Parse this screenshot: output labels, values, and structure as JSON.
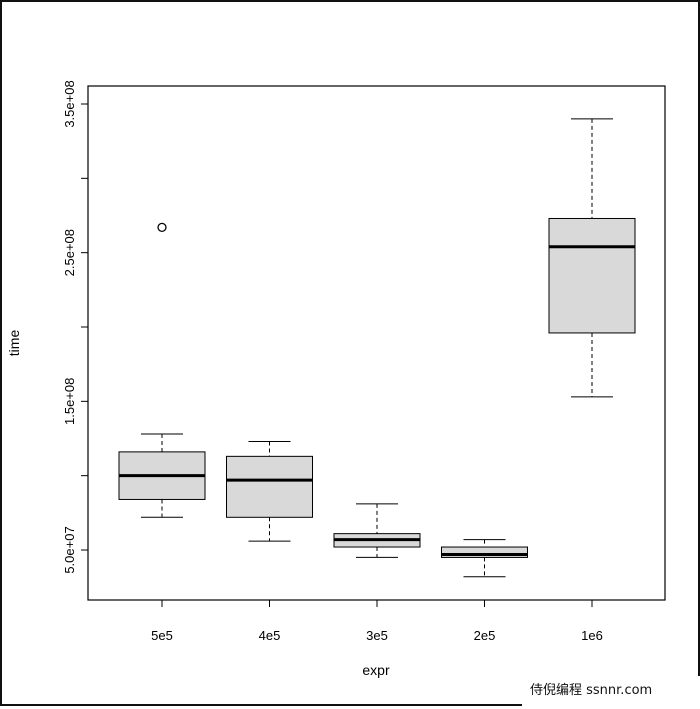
{
  "chart_data": {
    "type": "boxplot",
    "xlabel": "expr",
    "ylabel": "time",
    "ylim": [
      20000000,
      370000000
    ],
    "yticks": [
      50000000,
      100000000,
      150000000,
      200000000,
      250000000,
      300000000,
      350000000
    ],
    "ytick_labels": [
      "5.0e+07",
      "",
      "1.5e+08",
      "",
      "2.5e+08",
      "",
      "3.5e+08"
    ],
    "categories": [
      "5e5",
      "4e5",
      "3e5",
      "2e5",
      "1e6"
    ],
    "boxes": [
      {
        "whisker_low": 72000000,
        "q1": 84000000,
        "median": 100000000,
        "q3": 116000000,
        "whisker_high": 128000000,
        "outliers": [
          267000000
        ]
      },
      {
        "whisker_low": 56000000,
        "q1": 72000000,
        "median": 97000000,
        "q3": 113000000,
        "whisker_high": 123000000,
        "outliers": []
      },
      {
        "whisker_low": 45000000,
        "q1": 52000000,
        "median": 57000000,
        "q3": 61000000,
        "whisker_high": 81000000,
        "outliers": []
      },
      {
        "whisker_low": 32000000,
        "q1": 45000000,
        "median": 47000000,
        "q3": 52000000,
        "whisker_high": 57000000,
        "outliers": []
      },
      {
        "whisker_low": 153000000,
        "q1": 196000000,
        "median": 254000000,
        "q3": 273000000,
        "whisker_high": 340000000,
        "outliers": []
      }
    ],
    "colors": {
      "box_fill": "#d9d9d9",
      "stroke": "#000000"
    }
  },
  "watermark": "侍倪编程 ssnnr.com"
}
